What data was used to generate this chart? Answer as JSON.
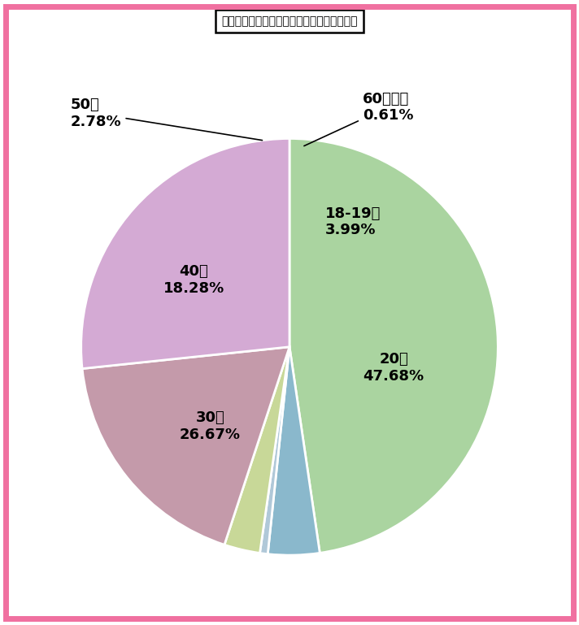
{
  "title": "福岡県のワクワクメール：女性会員の年齢層",
  "reorder_labels": [
    "20代",
    "18-19歳",
    "60代以上",
    "50代",
    "40代",
    "30代"
  ],
  "reorder_values": [
    47.68,
    3.99,
    0.61,
    2.78,
    18.28,
    26.67
  ],
  "wedge_colors": [
    "#aad4a0",
    "#8ab8cc",
    "#b0c8d8",
    "#c8d898",
    "#c49aaa",
    "#d4aad4"
  ],
  "background_color": "#ffffff",
  "border_color": "#f070a0",
  "title_fontsize": 15,
  "label_fontsize": 13,
  "startangle": 90
}
